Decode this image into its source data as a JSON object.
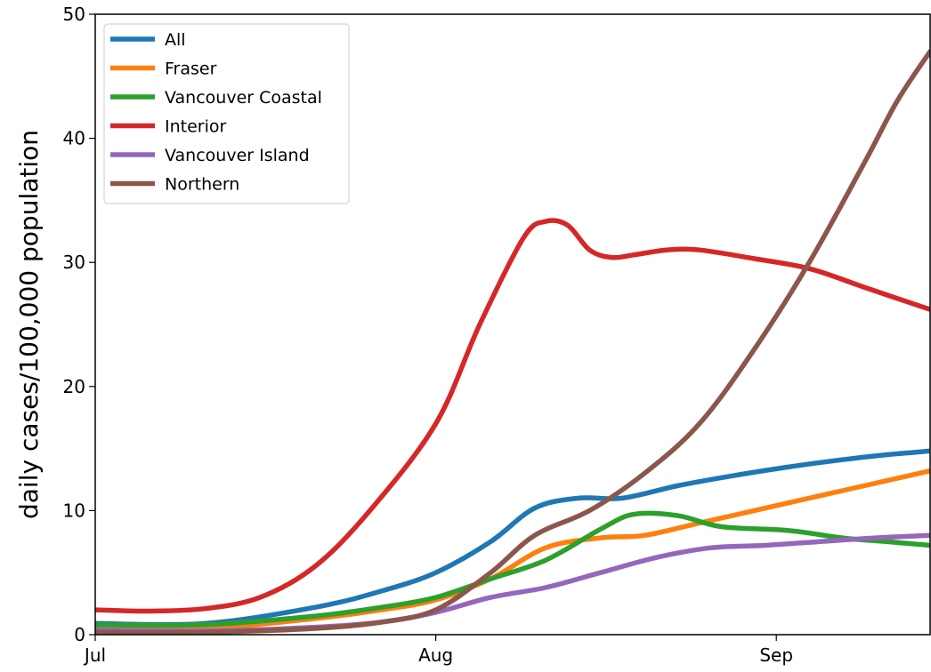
{
  "chart_data": {
    "type": "line",
    "title": "",
    "xlabel": "",
    "ylabel": "daily cases/100,000 population",
    "x_ticks": [
      {
        "label": "Jul",
        "day": 0
      },
      {
        "label": "Aug",
        "day": 31
      },
      {
        "label": "Sep",
        "day": 62
      }
    ],
    "xlim": [
      0,
      76
    ],
    "ylim": [
      0,
      50
    ],
    "y_ticks": [
      0,
      10,
      20,
      30,
      40,
      50
    ],
    "grid": false,
    "legend_position": "top-left",
    "series": [
      {
        "name": "All",
        "color": "#1f77b4",
        "points": [
          [
            0,
            0.9
          ],
          [
            10,
            0.9
          ],
          [
            20,
            2.2
          ],
          [
            26,
            3.5
          ],
          [
            31,
            5
          ],
          [
            36,
            7.5
          ],
          [
            40,
            10.2
          ],
          [
            44,
            11
          ],
          [
            48,
            11
          ],
          [
            53,
            12
          ],
          [
            58,
            12.8
          ],
          [
            63,
            13.5
          ],
          [
            68,
            14.1
          ],
          [
            72,
            14.5
          ],
          [
            76,
            14.8
          ]
        ]
      },
      {
        "name": "Fraser",
        "color": "#ff7f0e",
        "points": [
          [
            0,
            0.5
          ],
          [
            10,
            0.5
          ],
          [
            20,
            1.3
          ],
          [
            26,
            2
          ],
          [
            31,
            2.8
          ],
          [
            36,
            4.5
          ],
          [
            41,
            7
          ],
          [
            46,
            7.8
          ],
          [
            50,
            8
          ],
          [
            55,
            9
          ],
          [
            60,
            10
          ],
          [
            65,
            11
          ],
          [
            70,
            12
          ],
          [
            76,
            13.2
          ]
        ]
      },
      {
        "name": "Vancouver Coastal",
        "color": "#2ca02c",
        "points": [
          [
            0,
            0.8
          ],
          [
            10,
            0.8
          ],
          [
            20,
            1.5
          ],
          [
            26,
            2.2
          ],
          [
            31,
            3
          ],
          [
            36,
            4.5
          ],
          [
            41,
            6
          ],
          [
            46,
            8.5
          ],
          [
            49,
            9.7
          ],
          [
            53,
            9.6
          ],
          [
            57,
            8.7
          ],
          [
            63,
            8.4
          ],
          [
            68,
            7.8
          ],
          [
            72,
            7.5
          ],
          [
            76,
            7.2
          ]
        ]
      },
      {
        "name": "Interior",
        "color": "#d62728",
        "points": [
          [
            0,
            2
          ],
          [
            5,
            1.9
          ],
          [
            10,
            2.1
          ],
          [
            15,
            3
          ],
          [
            20,
            5.5
          ],
          [
            25,
            10
          ],
          [
            31,
            17
          ],
          [
            35,
            25
          ],
          [
            39,
            32
          ],
          [
            41,
            33.3
          ],
          [
            43,
            33
          ],
          [
            45,
            31
          ],
          [
            47,
            30.4
          ],
          [
            49,
            30.6
          ],
          [
            52,
            31
          ],
          [
            55,
            31
          ],
          [
            60,
            30.3
          ],
          [
            65,
            29.5
          ],
          [
            70,
            28
          ],
          [
            76,
            26.2
          ]
        ]
      },
      {
        "name": "Vancouver Island",
        "color": "#9467bd",
        "points": [
          [
            0,
            0.4
          ],
          [
            10,
            0.3
          ],
          [
            20,
            0.6
          ],
          [
            26,
            1
          ],
          [
            31,
            1.8
          ],
          [
            36,
            3
          ],
          [
            41,
            3.8
          ],
          [
            46,
            5
          ],
          [
            51,
            6.2
          ],
          [
            56,
            7
          ],
          [
            61,
            7.2
          ],
          [
            66,
            7.5
          ],
          [
            71,
            7.8
          ],
          [
            76,
            8
          ]
        ]
      },
      {
        "name": "Northern",
        "color": "#8c564b",
        "points": [
          [
            0,
            0.2
          ],
          [
            10,
            0.2
          ],
          [
            20,
            0.5
          ],
          [
            26,
            1
          ],
          [
            31,
            2
          ],
          [
            36,
            5
          ],
          [
            40,
            8
          ],
          [
            45,
            10
          ],
          [
            50,
            13
          ],
          [
            55,
            17
          ],
          [
            60,
            23
          ],
          [
            65,
            30
          ],
          [
            70,
            38
          ],
          [
            73,
            43
          ],
          [
            76,
            47
          ]
        ]
      }
    ]
  }
}
